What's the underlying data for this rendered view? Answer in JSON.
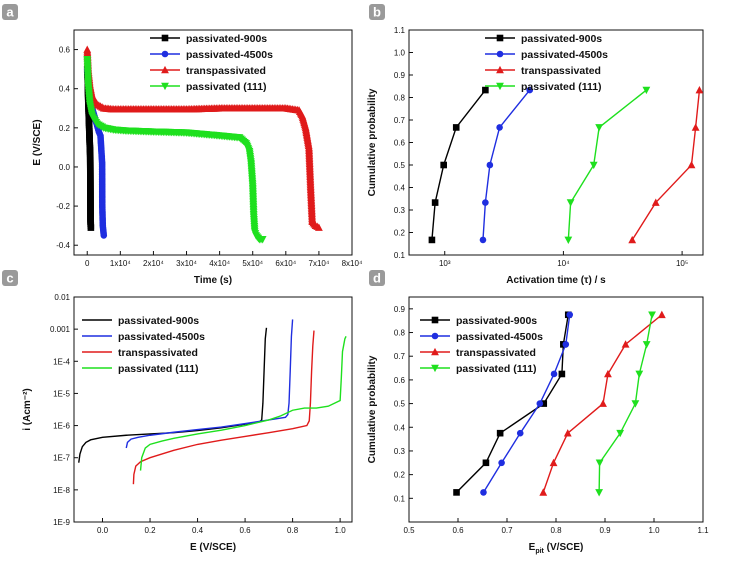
{
  "figure": {
    "panels": [
      "a",
      "b",
      "c",
      "d"
    ]
  },
  "chart_data": [
    {
      "panel": "a",
      "type": "line",
      "xlabel": "Time (s)",
      "ylabel": "E (V/SCE)",
      "xlim": [
        -4000,
        80000
      ],
      "ylim": [
        -0.45,
        0.7
      ],
      "xticks": [
        0,
        10000,
        20000,
        30000,
        40000,
        50000,
        60000,
        70000,
        80000
      ],
      "xtick_labels": [
        "0",
        "1x10⁴",
        "2x10⁴",
        "3x10⁴",
        "4x10⁴",
        "5x10⁴",
        "6x10⁴",
        "7x10⁴",
        "8x10⁴"
      ],
      "yticks": [
        -0.4,
        -0.2,
        0.0,
        0.2,
        0.4,
        0.6
      ],
      "ytick_labels": [
        "-0.4",
        "-0.2",
        "0.0",
        "0.2",
        "0.4",
        "0.6"
      ],
      "legend_position": "top-right",
      "series": [
        {
          "name": "passivated-900s",
          "color": "#000000",
          "marker": "square",
          "x": [
            0,
            150,
            300,
            450,
            600,
            750,
            900,
            950,
            1000,
            1100
          ],
          "y": [
            0.5,
            0.45,
            0.35,
            0.27,
            0.2,
            0.12,
            0.06,
            -0.1,
            -0.28,
            -0.31
          ]
        },
        {
          "name": "passivated-4500s",
          "color": "#1f2ee0",
          "marker": "circle",
          "x": [
            0,
            500,
            1000,
            1500,
            2000,
            2500,
            3000,
            3500,
            4000,
            4500,
            4550,
            4700,
            5000
          ],
          "y": [
            0.5,
            0.42,
            0.35,
            0.3,
            0.27,
            0.24,
            0.21,
            0.18,
            0.16,
            0.02,
            -0.2,
            -0.3,
            -0.35
          ]
        },
        {
          "name": "transpassivated",
          "color": "#e01b1b",
          "marker": "triangle-up",
          "x": [
            0,
            300,
            800,
            1500,
            3000,
            5000,
            8000,
            12000,
            20000,
            30000,
            40000,
            50000,
            60000,
            64000,
            65000,
            66000,
            67000,
            67500,
            68000,
            69000,
            70000
          ],
          "y": [
            0.6,
            0.5,
            0.42,
            0.36,
            0.32,
            0.3,
            0.295,
            0.295,
            0.295,
            0.295,
            0.3,
            0.3,
            0.3,
            0.29,
            0.26,
            0.2,
            0.1,
            -0.1,
            -0.28,
            -0.3,
            -0.31
          ]
        },
        {
          "name": "passivated (111)",
          "color": "#1ee01e",
          "marker": "triangle-down",
          "x": [
            0,
            300,
            800,
            1500,
            3000,
            5000,
            8000,
            12000,
            20000,
            30000,
            40000,
            46000,
            48000,
            49000,
            49500,
            50000,
            50300,
            50600,
            51000,
            52000,
            53000
          ],
          "y": [
            0.55,
            0.42,
            0.32,
            0.26,
            0.22,
            0.2,
            0.19,
            0.185,
            0.18,
            0.175,
            0.16,
            0.15,
            0.12,
            0.08,
            0.02,
            -0.1,
            -0.25,
            -0.33,
            -0.35,
            -0.37,
            -0.37
          ]
        }
      ]
    },
    {
      "panel": "b",
      "type": "line",
      "xlabel": "Activation time (τ) / s",
      "ylabel": "Cumulative probability",
      "xscale": "log",
      "xlim": [
        500,
        150000
      ],
      "ylim": [
        0.1,
        1.1
      ],
      "xticks": [
        1000,
        10000,
        100000
      ],
      "xtick_labels": [
        "10³",
        "10⁴",
        "10⁵"
      ],
      "yticks": [
        0.1,
        0.2,
        0.3,
        0.4,
        0.5,
        0.6,
        0.7,
        0.8,
        0.9,
        1.0,
        1.1
      ],
      "ytick_labels": [
        "0.1",
        "0.2",
        "0.3",
        "0.4",
        "0.5",
        "0.6",
        "0.7",
        "0.8",
        "0.9",
        "1.0",
        "1.1"
      ],
      "legend_position": "top-right",
      "series": [
        {
          "name": "passivated-900s",
          "color": "#000000",
          "marker": "square",
          "x": [
            780,
            830,
            980,
            1250,
            2200
          ],
          "y": [
            0.167,
            0.333,
            0.5,
            0.667,
            0.833
          ]
        },
        {
          "name": "passivated-4500s",
          "color": "#1f2ee0",
          "marker": "circle",
          "x": [
            2100,
            2200,
            2400,
            2900,
            5200
          ],
          "y": [
            0.167,
            0.333,
            0.5,
            0.667,
            0.833
          ]
        },
        {
          "name": "transpassivated",
          "color": "#e01b1b",
          "marker": "triangle-up",
          "x": [
            38000,
            60000,
            120000,
            130000,
            140000
          ],
          "y": [
            0.167,
            0.333,
            0.5,
            0.667,
            0.833
          ]
        },
        {
          "name": "passivated (111)",
          "color": "#1ee01e",
          "marker": "triangle-down",
          "x": [
            11000,
            11500,
            18000,
            20000,
            50000
          ],
          "y": [
            0.167,
            0.333,
            0.5,
            0.667,
            0.833
          ]
        }
      ]
    },
    {
      "panel": "c",
      "type": "line",
      "xlabel": "E (V/SCE)",
      "ylabel": "i (Acm⁻²)",
      "yscale": "log",
      "xlim": [
        -0.12,
        1.05
      ],
      "ylim": [
        1e-09,
        0.01
      ],
      "xticks": [
        0.0,
        0.2,
        0.4,
        0.6,
        0.8,
        1.0
      ],
      "xtick_labels": [
        "0.0",
        "0.2",
        "0.4",
        "0.6",
        "0.8",
        "1.0"
      ],
      "yticks": [
        1e-09,
        1e-08,
        1e-07,
        1e-06,
        1e-05,
        0.0001,
        0.001,
        0.01
      ],
      "ytick_labels": [
        "1E-9",
        "1E-8",
        "1E-7",
        "1E-6",
        "1E-5",
        "1E-4",
        "0.001",
        "0.01"
      ],
      "legend_position": "top-left",
      "series": [
        {
          "name": "passivated-900s",
          "color": "#000000",
          "x": [
            -0.1,
            -0.095,
            -0.085,
            -0.07,
            -0.05,
            0.0,
            0.1,
            0.2,
            0.3,
            0.4,
            0.5,
            0.6,
            0.66,
            0.67,
            0.675,
            0.68,
            0.685,
            0.69
          ],
          "y": [
            7e-08,
            1.3e-07,
            2.2e-07,
            3e-07,
            3.6e-07,
            4.3e-07,
            5e-07,
            5.5e-07,
            6e-07,
            7e-07,
            8.5e-07,
            1.1e-06,
            1.3e-06,
            1.5e-06,
            5e-06,
            5e-05,
            0.0005,
            0.0011
          ]
        },
        {
          "name": "passivated-4500s",
          "color": "#1f2ee0",
          "x": [
            0.1,
            0.105,
            0.12,
            0.15,
            0.2,
            0.3,
            0.4,
            0.5,
            0.6,
            0.7,
            0.77,
            0.78,
            0.785,
            0.79,
            0.795,
            0.8
          ],
          "y": [
            2e-07,
            3e-07,
            3.8e-07,
            4.3e-07,
            5e-07,
            6.2e-07,
            7.5e-07,
            9e-07,
            1.15e-06,
            1.5e-06,
            1.8e-06,
            2.2e-06,
            5e-06,
            5e-05,
            0.0006,
            0.002
          ]
        },
        {
          "name": "transpassivated",
          "color": "#e01b1b",
          "x": [
            0.13,
            0.132,
            0.14,
            0.16,
            0.2,
            0.3,
            0.4,
            0.5,
            0.6,
            0.7,
            0.8,
            0.86,
            0.87,
            0.875,
            0.88,
            0.885,
            0.89
          ],
          "y": [
            1.5e-08,
            3e-08,
            5.5e-08,
            7.5e-08,
            1e-07,
            1.7e-07,
            2.6e-07,
            3.5e-07,
            4.6e-07,
            6e-07,
            8e-07,
            1e-06,
            1.4e-06,
            5e-06,
            5e-05,
            0.0003,
            0.0009
          ]
        },
        {
          "name": "passivated (111)",
          "color": "#1ee01e",
          "x": [
            0.16,
            0.165,
            0.18,
            0.2,
            0.25,
            0.3,
            0.4,
            0.5,
            0.6,
            0.7,
            0.75,
            0.8,
            0.85,
            0.9,
            0.95,
            1.0,
            1.005,
            1.01,
            1.02,
            1.025
          ],
          "y": [
            4e-08,
            1e-07,
            2e-07,
            2.6e-07,
            3.3e-07,
            4e-07,
            5.5e-07,
            7.2e-07,
            1e-06,
            1.5e-06,
            2e-06,
            3e-06,
            3.5e-06,
            3.5e-06,
            4e-06,
            6e-06,
            3e-05,
            0.0002,
            0.0005,
            0.0006
          ]
        }
      ]
    },
    {
      "panel": "d",
      "type": "line",
      "xlabel": "E",
      "xlabel_subscript": "pit",
      "xlabel_suffix": " (V/SCE)",
      "ylabel": "Cumulative probability",
      "xlim": [
        0.5,
        1.1
      ],
      "ylim": [
        0.0,
        0.95
      ],
      "xticks": [
        0.5,
        0.6,
        0.7,
        0.8,
        0.9,
        1.0,
        1.1
      ],
      "xtick_labels": [
        "0.5",
        "0.6",
        "0.7",
        "0.8",
        "0.9",
        "1.0",
        "1.1"
      ],
      "yticks": [
        0.1,
        0.2,
        0.3,
        0.4,
        0.5,
        0.6,
        0.7,
        0.8,
        0.9
      ],
      "ytick_labels": [
        "0.1",
        "0.2",
        "0.3",
        "0.4",
        "0.5",
        "0.6",
        "0.7",
        "0.8",
        "0.9"
      ],
      "legend_position": "top-left",
      "series": [
        {
          "name": "passivated-900s",
          "color": "#000000",
          "marker": "square",
          "x": [
            0.597,
            0.657,
            0.686,
            0.775,
            0.812,
            0.815,
            0.825
          ],
          "y": [
            0.125,
            0.25,
            0.375,
            0.5,
            0.625,
            0.75,
            0.875
          ]
        },
        {
          "name": "passivated-4500s",
          "color": "#1f2ee0",
          "marker": "circle",
          "x": [
            0.652,
            0.689,
            0.727,
            0.767,
            0.796,
            0.82,
            0.828
          ],
          "y": [
            0.125,
            0.25,
            0.375,
            0.5,
            0.625,
            0.75,
            0.875
          ]
        },
        {
          "name": "transpassivated",
          "color": "#e01b1b",
          "marker": "triangle-up",
          "x": [
            0.774,
            0.795,
            0.824,
            0.896,
            0.906,
            0.942,
            1.016
          ],
          "y": [
            0.125,
            0.25,
            0.375,
            0.5,
            0.625,
            0.75,
            0.875
          ]
        },
        {
          "name": "passivated (111)",
          "color": "#1ee01e",
          "marker": "triangle-down",
          "x": [
            0.888,
            0.889,
            0.931,
            0.962,
            0.97,
            0.985,
            0.996
          ],
          "y": [
            0.125,
            0.25,
            0.375,
            0.5,
            0.625,
            0.75,
            0.875
          ]
        }
      ]
    }
  ]
}
